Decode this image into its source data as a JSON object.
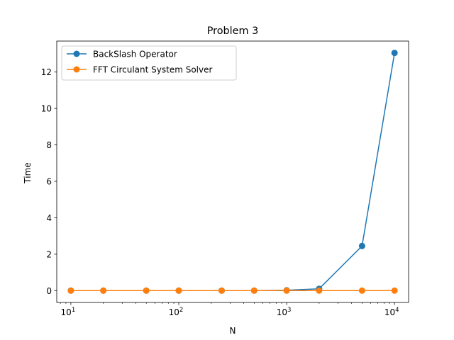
{
  "chart_data": {
    "type": "line",
    "title": "Problem 3",
    "xlabel": "N",
    "ylabel": "Time",
    "xscale": "log",
    "xlim": [
      7.4,
      13500
    ],
    "ylim": [
      -0.65,
      13.7
    ],
    "x": [
      10,
      20,
      50,
      100,
      250,
      500,
      1000,
      2000,
      5000,
      10000
    ],
    "x_ticks": [
      {
        "value": 10,
        "base": "10",
        "exp": "1"
      },
      {
        "value": 100,
        "base": "10",
        "exp": "2"
      },
      {
        "value": 1000,
        "base": "10",
        "exp": "3"
      },
      {
        "value": 10000,
        "base": "10",
        "exp": "4"
      }
    ],
    "y_ticks": [
      0,
      2,
      4,
      6,
      8,
      10,
      12
    ],
    "grid": false,
    "legend_position": "top-left",
    "series": [
      {
        "name": "BackSlash Operator",
        "color": "#1f77b4",
        "values": [
          0.0,
          0.0,
          0.0,
          0.0,
          0.0,
          0.0,
          0.02,
          0.1,
          2.45,
          13.05
        ]
      },
      {
        "name": "FFT Circulant System Solver",
        "color": "#ff7f0e",
        "values": [
          0.0,
          0.0,
          0.0,
          0.0,
          0.0,
          0.0,
          0.0,
          0.0,
          0.0,
          0.0
        ]
      }
    ]
  }
}
